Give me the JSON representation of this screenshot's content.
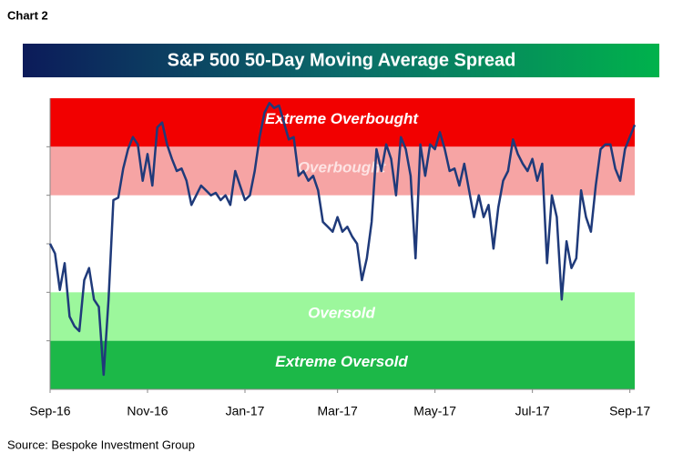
{
  "chart_data": {
    "type": "line",
    "chart_label": "Chart 2",
    "title": "S&P 500 50-Day Moving Average Spread",
    "source": "Source: Bespoke Investment Group",
    "color": "#1f3a7a",
    "categories": [
      "Sep-16",
      null,
      null,
      null,
      null,
      null,
      null,
      null,
      null,
      null,
      null,
      null,
      null,
      null,
      null,
      null,
      null,
      null,
      null,
      null,
      "Nov-16",
      null,
      null,
      null,
      null,
      null,
      null,
      null,
      null,
      null,
      null,
      null,
      null,
      null,
      null,
      null,
      null,
      null,
      null,
      null,
      "Jan-17",
      null,
      null,
      null,
      null,
      null,
      null,
      null,
      null,
      null,
      null,
      null,
      null,
      null,
      null,
      null,
      null,
      null,
      null,
      "Mar-17",
      null,
      null,
      null,
      null,
      null,
      null,
      null,
      null,
      null,
      null,
      null,
      null,
      null,
      null,
      null,
      null,
      null,
      null,
      null,
      "May-17",
      null,
      null,
      null,
      null,
      null,
      null,
      null,
      null,
      null,
      null,
      null,
      null,
      null,
      null,
      null,
      null,
      null,
      null,
      null,
      "Jul-17",
      null,
      null,
      null,
      null,
      null,
      null,
      null,
      null,
      null,
      null,
      null,
      null,
      null,
      null,
      null,
      null,
      null,
      null,
      null,
      "Sep-17",
      null
    ],
    "values": [
      0,
      -0.2,
      -0.95,
      -0.4,
      -1.5,
      -1.7,
      -1.8,
      -0.75,
      -0.5,
      -1.15,
      -1.3,
      -2.7,
      -1.15,
      0.9,
      0.95,
      1.55,
      1.95,
      2.2,
      2.05,
      1.3,
      1.85,
      1.2,
      2.4,
      2.5,
      2.05,
      1.75,
      1.5,
      1.55,
      1.3,
      0.8,
      1.0,
      1.2,
      1.1,
      1.0,
      1.05,
      0.9,
      1.0,
      0.8,
      1.5,
      1.2,
      0.9,
      1.0,
      1.5,
      2.2,
      2.7,
      2.9,
      2.8,
      2.85,
      2.5,
      2.15,
      2.2,
      1.4,
      1.5,
      1.3,
      1.4,
      1.1,
      0.45,
      0.35,
      0.25,
      0.55,
      0.25,
      0.35,
      0.15,
      0,
      -0.75,
      -0.3,
      0.45,
      1.95,
      1.5,
      2.05,
      1.75,
      1.0,
      2.2,
      1.95,
      1.4,
      -0.3,
      2.05,
      1.4,
      2.05,
      1.95,
      2.3,
      1.95,
      1.5,
      1.55,
      1.2,
      1.65,
      1.1,
      0.55,
      1.0,
      0.55,
      0.8,
      -0.1,
      0.75,
      1.3,
      1.5,
      2.15,
      1.85,
      1.65,
      1.5,
      1.75,
      1.3,
      1.65,
      -0.4,
      1.0,
      0.55,
      -1.15,
      0.05,
      -0.5,
      -0.3,
      1.1,
      0.55,
      0.25,
      1.2,
      1.95,
      2.05,
      2.05,
      1.55,
      1.3,
      1.95,
      2.2,
      2.45
    ],
    "ylim": [
      -3,
      3
    ],
    "yticks": [
      -2,
      -1,
      0,
      1,
      2
    ],
    "bands": [
      {
        "name": "Extreme Overbought",
        "from": 2,
        "to": 3,
        "color": "#f20000",
        "label_color": "#ffffff"
      },
      {
        "name": "Overbought",
        "from": 1,
        "to": 2,
        "color": "#f6a4a4",
        "label_color": "#fde3e3"
      },
      {
        "name": "Oversold",
        "from": -2,
        "to": -1,
        "color": "#9cf79c",
        "label_color": "#ffffff"
      },
      {
        "name": "Extreme Oversold",
        "from": -3,
        "to": -2,
        "color": "#1cb848",
        "label_color": "#ffffff"
      }
    ]
  }
}
